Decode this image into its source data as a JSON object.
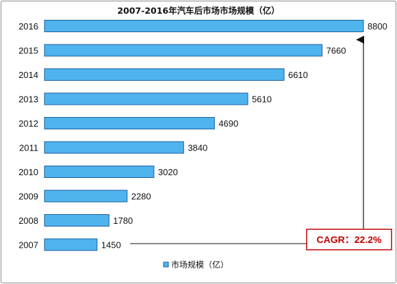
{
  "chart_data": {
    "type": "bar",
    "orientation": "horizontal",
    "title": "2007-2016年汽车后市场市场规模（亿）",
    "categories": [
      "2016",
      "2015",
      "2014",
      "2013",
      "2012",
      "2011",
      "2010",
      "2009",
      "2008",
      "2007"
    ],
    "series": [
      {
        "name": "市场规模（亿）",
        "values": [
          8800,
          7660,
          6610,
          5610,
          4690,
          3840,
          3020,
          2280,
          1780,
          1450
        ],
        "color": "#4fb3ee"
      }
    ],
    "xlim": [
      0,
      9500
    ],
    "grid": false,
    "legend_position": "bottom-left",
    "annotation": {
      "text": "CAGR：22.2%",
      "border_color": "#c00000",
      "text_color": "#c00000",
      "arrow": "from 2007 bar to 2016 bar"
    }
  },
  "colors": {
    "bar_fill": "#4fb3ee",
    "bar_stroke": "#1b5e9c",
    "annotation_red": "#c00000",
    "text": "#111111"
  }
}
